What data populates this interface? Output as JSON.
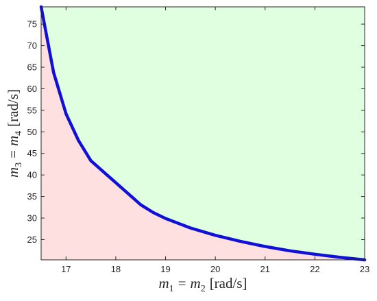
{
  "chart_data": {
    "type": "area",
    "title": "",
    "xlabel": {
      "lhs": "m",
      "lhs_sub": "1",
      "rhs": "m",
      "rhs_sub": "2",
      "unit": "[rad/s]"
    },
    "ylabel": {
      "lhs": "m",
      "lhs_sub": "3",
      "rhs": "m",
      "rhs_sub": "4",
      "unit": "[rad/s]"
    },
    "xlim": [
      16.5,
      23
    ],
    "ylim": [
      20.3,
      79
    ],
    "xticks": [
      17,
      18,
      19,
      20,
      21,
      22,
      23
    ],
    "yticks": [
      25,
      30,
      35,
      40,
      45,
      50,
      55,
      60,
      65,
      70,
      75
    ],
    "grid": false,
    "colors": {
      "curve": "#1010d8",
      "region_below": "#ffe0e0",
      "region_above": "#e0ffe0",
      "axis": "#262626"
    },
    "series": [
      {
        "x": [
          16.5,
          16.75,
          17.0,
          17.25,
          17.5,
          18.0,
          18.5,
          18.75,
          19.0,
          19.5,
          20.0,
          20.5,
          21.0,
          21.5,
          22.0,
          22.5,
          23.0
        ],
        "y": [
          79.0,
          63.8,
          54.2,
          48.0,
          43.3,
          38.2,
          33.1,
          31.3,
          29.9,
          27.7,
          26.0,
          24.6,
          23.4,
          22.4,
          21.6,
          20.9,
          20.3
        ]
      }
    ]
  }
}
